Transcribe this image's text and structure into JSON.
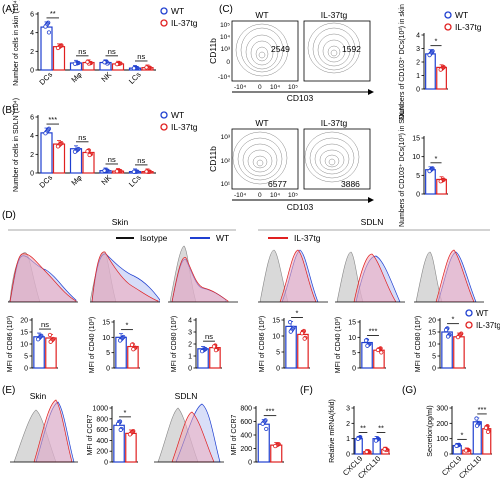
{
  "colors": {
    "wt": "#1f3fd0",
    "il37": "#e02020",
    "isotype": "#9a9a9a",
    "wt_fill": "#9fb0f0",
    "il37_fill": "#f2a8b8",
    "axis": "#000000",
    "contour": "#7a7a7a"
  },
  "panel_labels": {
    "A": "(A)",
    "B": "(B)",
    "C": "(C)",
    "D": "(D)",
    "E": "(E)",
    "F": "(F)",
    "G": "(G)"
  },
  "legend": {
    "wt": "WT",
    "il37": "IL-37tg",
    "isotype": "Isotype"
  },
  "flow_c": {
    "top_left_title": "WT",
    "top_right_title": "IL-37tg",
    "top_left_count": "2549",
    "top_right_count": "1592",
    "bottom_left_title": "WT",
    "bottom_right_title": "IL-37tg",
    "bottom_left_count": "6577",
    "bottom_right_count": "3886",
    "ylabel": "CD11b",
    "xlabel": "CD103",
    "top_yticks": [
      "10⁵",
      "10⁴",
      "10³",
      "0",
      "-10⁴"
    ],
    "top_xticks": [
      "-10⁴",
      "0",
      "10⁴",
      "10⁵"
    ],
    "bottom_yticks": [
      "10³",
      "10²",
      "10¹"
    ],
    "bottom_xticks": [
      "-10⁴",
      "0",
      "10⁴",
      "10⁵"
    ]
  },
  "hist_d": {
    "skin_title": "Skin",
    "sdln_title": "SDLN"
  },
  "hist_e": {
    "skin_title": "Skin",
    "sdln_title": "SDLN"
  },
  "chart_data": [
    {
      "id": "A",
      "type": "bar",
      "ylabel": "Number of cells in skin  (10⁴)",
      "ylim": [
        0,
        6
      ],
      "yticks": [
        "0",
        "2",
        "4",
        "6"
      ],
      "categories": [
        "DCs",
        "Mφ",
        "NK",
        "LCs"
      ],
      "sig": [
        "**",
        "ns",
        "ns",
        "ns"
      ],
      "series": [
        {
          "name": "WT",
          "values": [
            4.6,
            0.75,
            0.8,
            0.2
          ]
        },
        {
          "name": "IL-37tg",
          "values": [
            2.5,
            0.8,
            0.65,
            0.25
          ]
        }
      ]
    },
    {
      "id": "B",
      "type": "bar",
      "ylabel": "Number of cells in SDLN  (10⁴)",
      "ylim": [
        0,
        6
      ],
      "yticks": [
        "0",
        "2",
        "4",
        "6"
      ],
      "categories": [
        "DCs",
        "Mφ",
        "NK",
        "LCs"
      ],
      "sig": [
        "***",
        "ns",
        "ns",
        "ns"
      ],
      "series": [
        {
          "name": "WT",
          "values": [
            4.3,
            2.6,
            0.25,
            0.15
          ]
        },
        {
          "name": "IL-37tg",
          "values": [
            3.1,
            2.2,
            0.2,
            0.15
          ]
        }
      ]
    },
    {
      "id": "C1",
      "type": "bar",
      "ylabel": "Numbers of CD103⁺ DCs(10³) in skin",
      "ylim": [
        0,
        4
      ],
      "yticks": [
        "0",
        "1",
        "2",
        "3",
        "4"
      ],
      "categories": [
        ""
      ],
      "sig": [
        "*"
      ],
      "series": [
        {
          "name": "WT",
          "values": [
            2.6
          ]
        },
        {
          "name": "IL-37tg",
          "values": [
            1.6
          ]
        }
      ]
    },
    {
      "id": "C2",
      "type": "bar",
      "ylabel": "Numbers of CD103⁺ DCs(10³) in SDLN",
      "ylim": [
        0,
        15
      ],
      "yticks": [
        "0",
        "5",
        "10",
        "15"
      ],
      "categories": [
        ""
      ],
      "sig": [
        "*"
      ],
      "series": [
        {
          "name": "WT",
          "values": [
            6.5
          ]
        },
        {
          "name": "IL-37tg",
          "values": [
            3.9
          ]
        }
      ]
    },
    {
      "id": "D1",
      "type": "bar",
      "ylabel": "MFI of CD86 (10³)",
      "ylim": [
        0,
        20
      ],
      "yticks": [
        "0",
        "5",
        "10",
        "15",
        "20"
      ],
      "categories": [
        ""
      ],
      "sig": [
        "ns"
      ],
      "series": [
        {
          "name": "WT",
          "values": [
            13
          ]
        },
        {
          "name": "IL-37tg",
          "values": [
            12.5
          ]
        }
      ]
    },
    {
      "id": "D2",
      "type": "bar",
      "ylabel": "MFI of CD40 (10³)",
      "ylim": [
        0,
        15
      ],
      "yticks": [
        "0",
        "5",
        "10",
        "15"
      ],
      "categories": [
        ""
      ],
      "sig": [
        "*"
      ],
      "series": [
        {
          "name": "WT",
          "values": [
            10
          ]
        },
        {
          "name": "IL-37tg",
          "values": [
            7
          ]
        }
      ]
    },
    {
      "id": "D3",
      "type": "bar",
      "ylabel": "MFI of CD80 (10³)",
      "ylim": [
        0,
        4
      ],
      "yticks": [
        "0",
        "1",
        "2",
        "3",
        "4"
      ],
      "categories": [
        ""
      ],
      "sig": [
        "ns"
      ],
      "series": [
        {
          "name": "WT",
          "values": [
            1.6
          ]
        },
        {
          "name": "IL-37tg",
          "values": [
            1.7
          ]
        }
      ]
    },
    {
      "id": "D4",
      "type": "bar",
      "ylabel": "MFI of CD86 (10³)",
      "ylim": [
        0,
        15
      ],
      "yticks": [
        "0",
        "5",
        "10",
        "15"
      ],
      "categories": [
        ""
      ],
      "sig": [
        "*"
      ],
      "series": [
        {
          "name": "WT",
          "values": [
            13
          ]
        },
        {
          "name": "IL-37tg",
          "values": [
            10.5
          ]
        }
      ]
    },
    {
      "id": "D5",
      "type": "bar",
      "ylabel": "MFI of CD40 (10³)",
      "ylim": [
        0,
        15
      ],
      "yticks": [
        "0",
        "5",
        "10",
        "15"
      ],
      "categories": [
        ""
      ],
      "sig": [
        "***"
      ],
      "series": [
        {
          "name": "WT",
          "values": [
            8.3
          ]
        },
        {
          "name": "IL-37tg",
          "values": [
            5.8
          ]
        }
      ]
    },
    {
      "id": "D6",
      "type": "bar",
      "ylabel": "MFI of CD80 (10³)",
      "ylim": [
        0,
        20
      ],
      "yticks": [
        "0",
        "5",
        "10",
        "15",
        "20"
      ],
      "categories": [
        ""
      ],
      "sig": [
        "*"
      ],
      "series": [
        {
          "name": "WT",
          "values": [
            15
          ]
        },
        {
          "name": "IL-37tg",
          "values": [
            13
          ]
        }
      ]
    },
    {
      "id": "E1",
      "type": "bar",
      "ylabel": "MFI of CCR7",
      "ylim": [
        0,
        1000
      ],
      "yticks": [
        "0",
        "200",
        "400",
        "600",
        "800",
        "1000"
      ],
      "categories": [
        ""
      ],
      "sig": [
        "*"
      ],
      "series": [
        {
          "name": "WT",
          "values": [
            680
          ]
        },
        {
          "name": "IL-37tg",
          "values": [
            530
          ]
        }
      ]
    },
    {
      "id": "E2",
      "type": "bar",
      "ylabel": "MFI of CCR7",
      "ylim": [
        0,
        800
      ],
      "yticks": [
        "0",
        "200",
        "400",
        "600",
        "800"
      ],
      "categories": [
        ""
      ],
      "sig": [
        "***"
      ],
      "series": [
        {
          "name": "WT",
          "values": [
            560
          ]
        },
        {
          "name": "IL-37tg",
          "values": [
            250
          ]
        }
      ]
    },
    {
      "id": "F",
      "type": "bar",
      "ylabel": "Relative mRNA(fold)",
      "ylim": [
        0,
        3
      ],
      "yticks": [
        "0",
        "1",
        "2",
        "3"
      ],
      "categories": [
        "CXCL9",
        "CXCL10"
      ],
      "sig": [
        "**",
        "**"
      ],
      "series": [
        {
          "name": "WT",
          "values": [
            1.0,
            1.0
          ]
        },
        {
          "name": "IL-37tg",
          "values": [
            0.15,
            0.3
          ]
        }
      ]
    },
    {
      "id": "G",
      "type": "bar",
      "ylabel": "Secretion(pg/ml)",
      "ylim": [
        0,
        300
      ],
      "yticks": [
        "0",
        "100",
        "200",
        "300"
      ],
      "categories": [
        "CXCL9",
        "CXCL10"
      ],
      "sig": [
        "*",
        "***"
      ],
      "series": [
        {
          "name": "WT",
          "values": [
            55,
            210
          ]
        },
        {
          "name": "IL-37tg",
          "values": [
            25,
            165
          ]
        }
      ]
    }
  ]
}
